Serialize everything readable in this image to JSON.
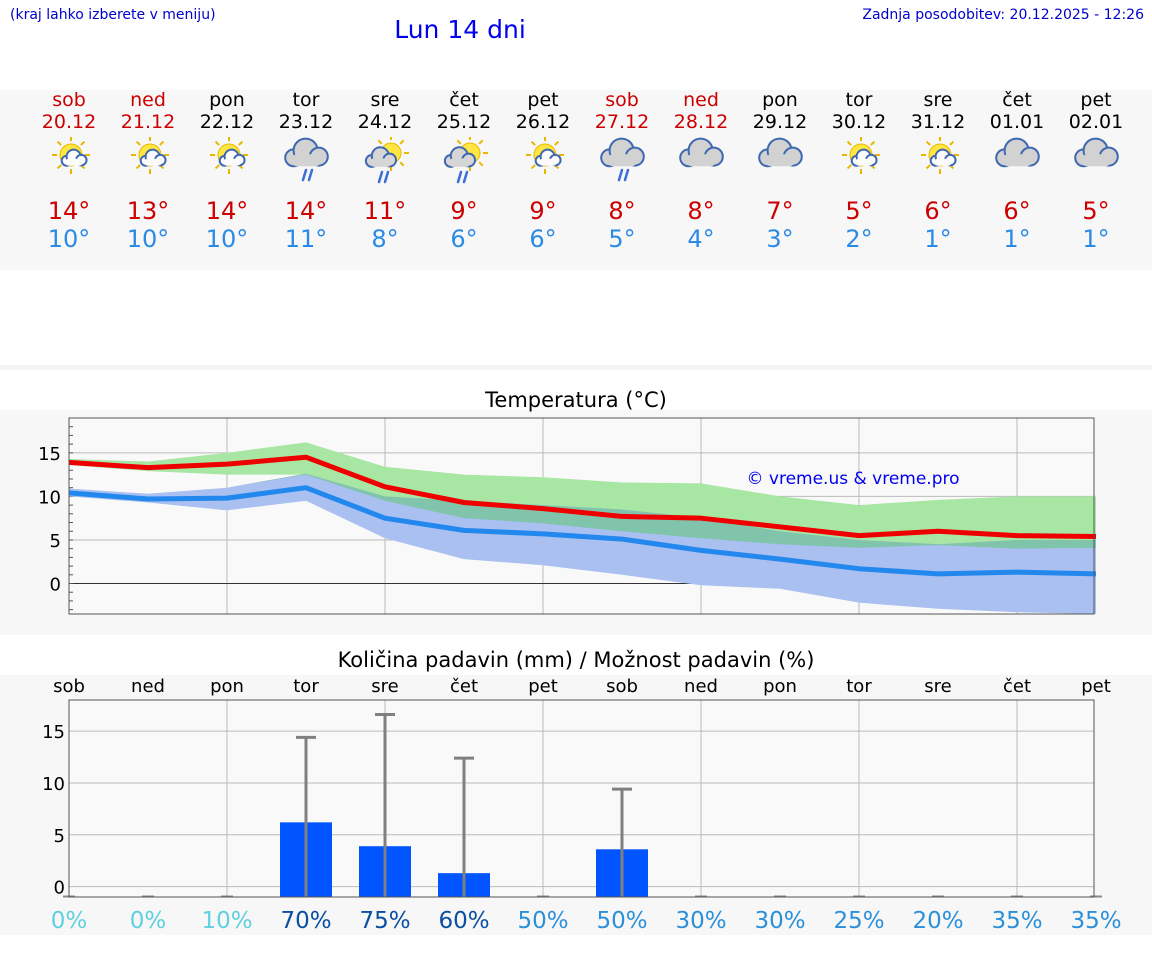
{
  "header": {
    "hint": "(kraj lahko izberete v meniju)",
    "title": "Lun 14 dni",
    "updated": "Zadnja posodobitev: 20.12.2025 - 12:26"
  },
  "days": [
    {
      "name": "sob",
      "date": "20.12",
      "weekend": true,
      "icon": "sun-cloud-icon",
      "tmax": "14°",
      "tmin": "10°"
    },
    {
      "name": "ned",
      "date": "21.12",
      "weekend": true,
      "icon": "sun-cloud-icon",
      "tmax": "13°",
      "tmin": "10°"
    },
    {
      "name": "pon",
      "date": "22.12",
      "weekend": false,
      "icon": "sun-cloud-icon",
      "tmax": "14°",
      "tmin": "10°"
    },
    {
      "name": "tor",
      "date": "23.12",
      "weekend": false,
      "icon": "cloud-rain-icon",
      "tmax": "14°",
      "tmin": "11°"
    },
    {
      "name": "sre",
      "date": "24.12",
      "weekend": false,
      "icon": "sun-cloud-rain-icon",
      "tmax": "11°",
      "tmin": "8°"
    },
    {
      "name": "čet",
      "date": "25.12",
      "weekend": false,
      "icon": "sun-cloud-rain-icon",
      "tmax": "9°",
      "tmin": "6°"
    },
    {
      "name": "pet",
      "date": "26.12",
      "weekend": false,
      "icon": "sun-cloud-icon",
      "tmax": "9°",
      "tmin": "6°"
    },
    {
      "name": "sob",
      "date": "27.12",
      "weekend": true,
      "icon": "cloud-rain-icon",
      "tmax": "8°",
      "tmin": "5°"
    },
    {
      "name": "ned",
      "date": "28.12",
      "weekend": true,
      "icon": "cloud-icon",
      "tmax": "8°",
      "tmin": "4°"
    },
    {
      "name": "pon",
      "date": "29.12",
      "weekend": false,
      "icon": "cloud-icon",
      "tmax": "7°",
      "tmin": "3°"
    },
    {
      "name": "tor",
      "date": "30.12",
      "weekend": false,
      "icon": "sun-cloud-icon",
      "tmax": "5°",
      "tmin": "2°"
    },
    {
      "name": "sre",
      "date": "31.12",
      "weekend": false,
      "icon": "sun-cloud-icon",
      "tmax": "6°",
      "tmin": "1°"
    },
    {
      "name": "čet",
      "date": "01.01",
      "weekend": false,
      "icon": "cloud-icon",
      "tmax": "6°",
      "tmin": "1°"
    },
    {
      "name": "pet",
      "date": "02.01",
      "weekend": false,
      "icon": "cloud-icon",
      "tmax": "5°",
      "tmin": "1°"
    }
  ],
  "colors": {
    "weekend": "#cc0000",
    "tmax": "#cc0000",
    "tmin": "#2a8ae6",
    "max_line": "#ee0000",
    "min_line": "#2288ee",
    "max_band": "#a8e6a3",
    "min_band": "#a9c0f0",
    "overlap": "#7cc4a4",
    "bar": "#0055ff",
    "whisker": "#808080"
  },
  "chart_data": [
    {
      "type": "line",
      "title": "Temperatura (°C)",
      "watermark": "© vreme.us & vreme.pro",
      "ylim": [
        -3.5,
        19
      ],
      "yticks": [
        0,
        5,
        10,
        15
      ],
      "x": [
        0,
        1,
        2,
        3,
        4,
        5,
        6,
        7,
        8,
        9,
        10,
        11,
        12,
        13
      ],
      "series": [
        {
          "name": "max",
          "values": [
            13.9,
            13.3,
            13.7,
            14.5,
            11.1,
            9.3,
            8.6,
            7.7,
            7.5,
            6.5,
            5.5,
            6.0,
            5.5,
            5.4
          ]
        },
        {
          "name": "min",
          "values": [
            10.4,
            9.7,
            9.8,
            11.0,
            7.5,
            6.1,
            5.7,
            5.1,
            3.8,
            2.8,
            1.7,
            1.1,
            1.3,
            1.1
          ]
        }
      ],
      "bands": [
        {
          "name": "max-range",
          "low": [
            13.6,
            12.9,
            12.5,
            12.5,
            9.5,
            7.5,
            6.9,
            6.0,
            5.2,
            4.5,
            4.1,
            4.4,
            4.0,
            4.1
          ],
          "high": [
            14.3,
            14.0,
            15.0,
            16.2,
            13.4,
            12.5,
            12.2,
            11.6,
            11.5,
            10.0,
            9.0,
            9.6,
            10.0,
            10.0
          ]
        },
        {
          "name": "min-range",
          "low": [
            10.0,
            9.3,
            8.4,
            9.5,
            5.2,
            2.8,
            2.1,
            1.0,
            -0.2,
            -0.6,
            -2.2,
            -2.9,
            -3.3,
            -3.5
          ],
          "high": [
            10.9,
            10.3,
            11.0,
            12.6,
            10.0,
            9.5,
            9.0,
            8.5,
            7.5,
            6.0,
            5.0,
            4.5,
            5.0,
            5.0
          ]
        }
      ]
    },
    {
      "type": "bar",
      "title": "Količina padavin (mm) / Možnost padavin (%)",
      "ylim": [
        -1,
        18
      ],
      "yticks": [
        0,
        5,
        10,
        15
      ],
      "categories": [
        "sob",
        "ned",
        "pon",
        "tor",
        "sre",
        "čet",
        "pet",
        "sob",
        "ned",
        "pon",
        "tor",
        "sre",
        "čet",
        "pet"
      ],
      "values": [
        0,
        0,
        0,
        6.2,
        3.9,
        1.3,
        0,
        3.6,
        0,
        0,
        0,
        0,
        0,
        0
      ],
      "error_high": [
        0,
        0,
        0,
        14.4,
        16.6,
        12.4,
        0,
        9.4,
        0,
        0,
        0,
        0,
        0,
        0
      ],
      "probability": [
        "0%",
        "0%",
        "10%",
        "70%",
        "75%",
        "60%",
        "50%",
        "50%",
        "30%",
        "30%",
        "25%",
        "20%",
        "35%",
        "35%"
      ],
      "probability_values": [
        0,
        0,
        10,
        70,
        75,
        60,
        50,
        50,
        30,
        30,
        25,
        20,
        35,
        35
      ]
    }
  ]
}
